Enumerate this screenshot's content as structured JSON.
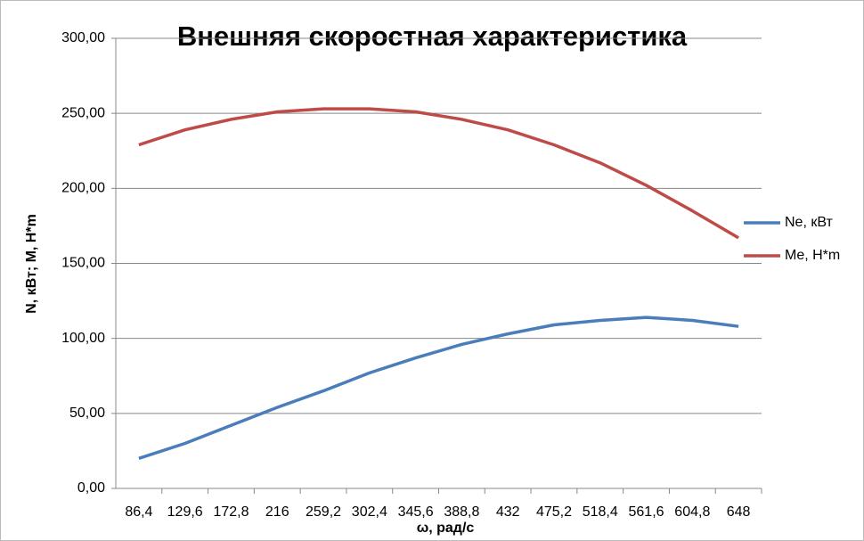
{
  "chart_data": {
    "type": "line",
    "title": "Внешняя скоростная характеристика",
    "x_label": "ω, рад/с",
    "y_label": "N, кВт; M, Н*m",
    "categories": [
      "86,4",
      "129,6",
      "172,8",
      "216",
      "259,2",
      "302,4",
      "345,6",
      "388,8",
      "432",
      "475,2",
      "518,4",
      "561,6",
      "604,8",
      "648"
    ],
    "series": [
      {
        "name": "Ne, кВт",
        "color": "#4a7ebb",
        "values": [
          20,
          30,
          42,
          54,
          65,
          77,
          87,
          96,
          103,
          109,
          112,
          114,
          112,
          108
        ]
      },
      {
        "name": "Me, Н*m",
        "color": "#be4b48",
        "values": [
          229,
          239,
          246,
          251,
          253,
          253,
          251,
          246,
          239,
          229,
          217,
          202,
          185,
          167
        ]
      }
    ],
    "ylim": [
      0,
      300
    ],
    "yticks": [
      {
        "value": 0,
        "label": "0,00"
      },
      {
        "value": 50,
        "label": "50,00"
      },
      {
        "value": 100,
        "label": "100,00"
      },
      {
        "value": 150,
        "label": "150,00"
      },
      {
        "value": 200,
        "label": "200,00"
      },
      {
        "value": 250,
        "label": "250,00"
      },
      {
        "value": 300,
        "label": "300,00"
      }
    ],
    "grid": true,
    "legend": "right"
  }
}
